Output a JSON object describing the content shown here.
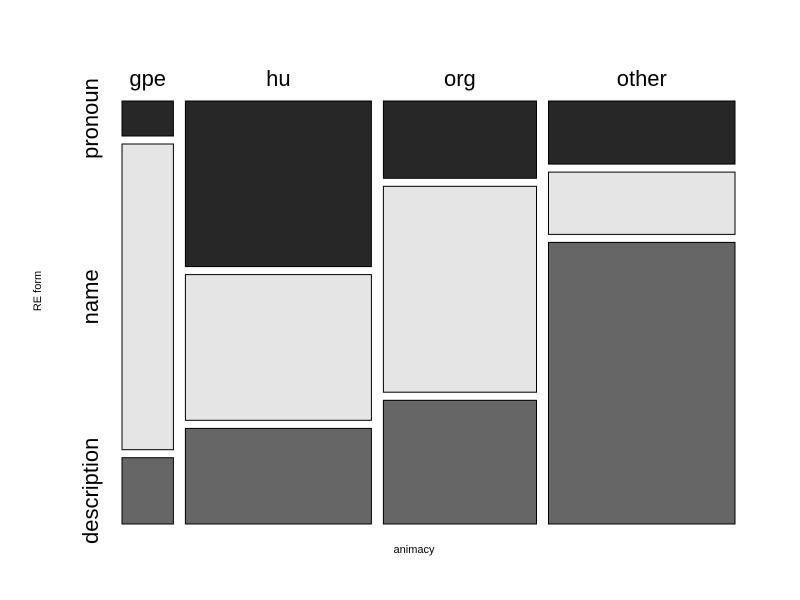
{
  "chart_data": {
    "type": "mosaic",
    "xlabel": "animacy",
    "ylabel": "RE form",
    "categories": [
      "gpe",
      "hu",
      "org",
      "other"
    ],
    "levels": [
      "pronoun",
      "name",
      "description"
    ],
    "column_proportions": [
      0.094,
      0.34,
      0.28,
      0.341
    ],
    "series": [
      {
        "name": "pronoun",
        "values": [
          0.086,
          0.407,
          0.19,
          0.155
        ]
      },
      {
        "name": "name",
        "values": [
          0.751,
          0.358,
          0.506,
          0.153
        ]
      },
      {
        "name": "description",
        "values": [
          0.163,
          0.235,
          0.304,
          0.692
        ]
      }
    ],
    "colors": {
      "pronoun": "#272727",
      "name": "#e5e5e5",
      "description": "#666666",
      "stroke": "#000000"
    }
  }
}
